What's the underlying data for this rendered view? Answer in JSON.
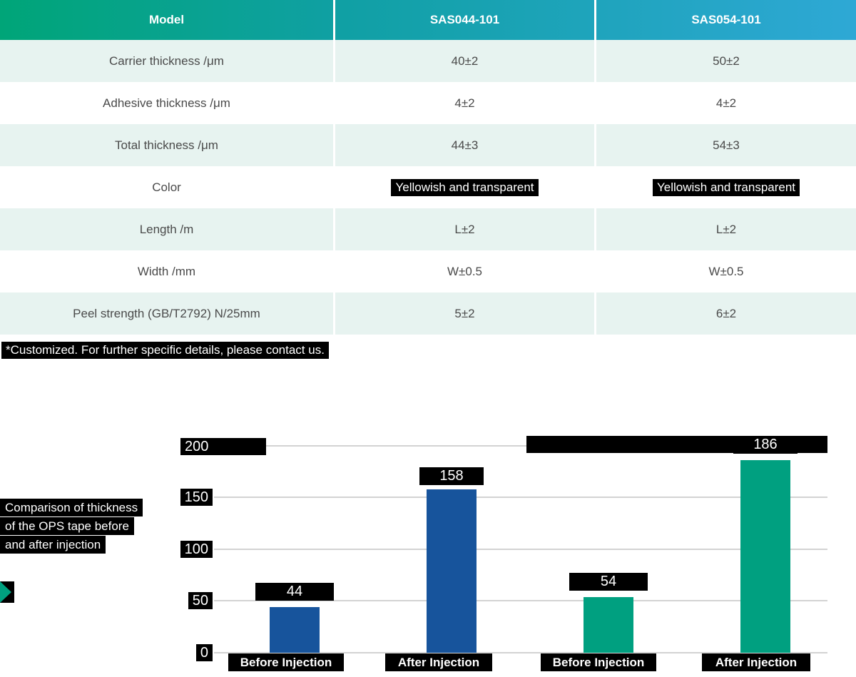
{
  "colors": {
    "header_gradient_start": "#00a578",
    "header_gradient_end": "#2ea8d5",
    "row_stripe": "#e7f3f0",
    "body_text": "#4a4a4a",
    "highlight_bg": "#000000",
    "highlight_text": "#ffffff",
    "bar_blue": "#17549c",
    "bar_teal": "#00a080",
    "gridline": "#d3d3d3"
  },
  "table": {
    "headers": [
      "Model",
      "SAS044-101",
      "SAS054-101"
    ],
    "rows": [
      {
        "label": "Carrier thickness /μm",
        "sas044": "40±2",
        "sas054": "50±2"
      },
      {
        "label": "Adhesive thickness /μm",
        "sas044": "4±2",
        "sas054": "4±2"
      },
      {
        "label": "Total thickness /μm",
        "sas044": "44±3",
        "sas054": "54±3"
      },
      {
        "label": "Color",
        "sas044": "Yellowish and transparent",
        "sas054": "Yellowish and transparent"
      },
      {
        "label": "Length /m",
        "sas044": "L±2",
        "sas054": "L±2"
      },
      {
        "label": "Width /mm",
        "sas044": "W±0.5",
        "sas054": "W±0.5"
      },
      {
        "label": "Peel strength (GB/T2792) N/25mm",
        "sas044": "5±2",
        "sas054": "6±2"
      }
    ]
  },
  "footnote": "*Customized. For further specific details, please contact us.",
  "chart_caption": {
    "lines": [
      "Comparison of thickness",
      "of the OPS tape before",
      "and after injection"
    ]
  },
  "chart_data": {
    "type": "bar",
    "title": "Comparison of thickness of the OPS tape before and after injection",
    "categories": [
      "Before Injection",
      "After Injection",
      "Before Injection",
      "After Injection"
    ],
    "values": [
      44,
      158,
      54,
      186
    ],
    "bar_colors": [
      "#17549c",
      "#17549c",
      "#00a080",
      "#00a080"
    ],
    "xlabel": "",
    "ylabel": "",
    "ylim": [
      0,
      200
    ],
    "yticks": [
      0,
      50,
      100,
      150,
      200
    ],
    "grid": true,
    "legend": false
  }
}
